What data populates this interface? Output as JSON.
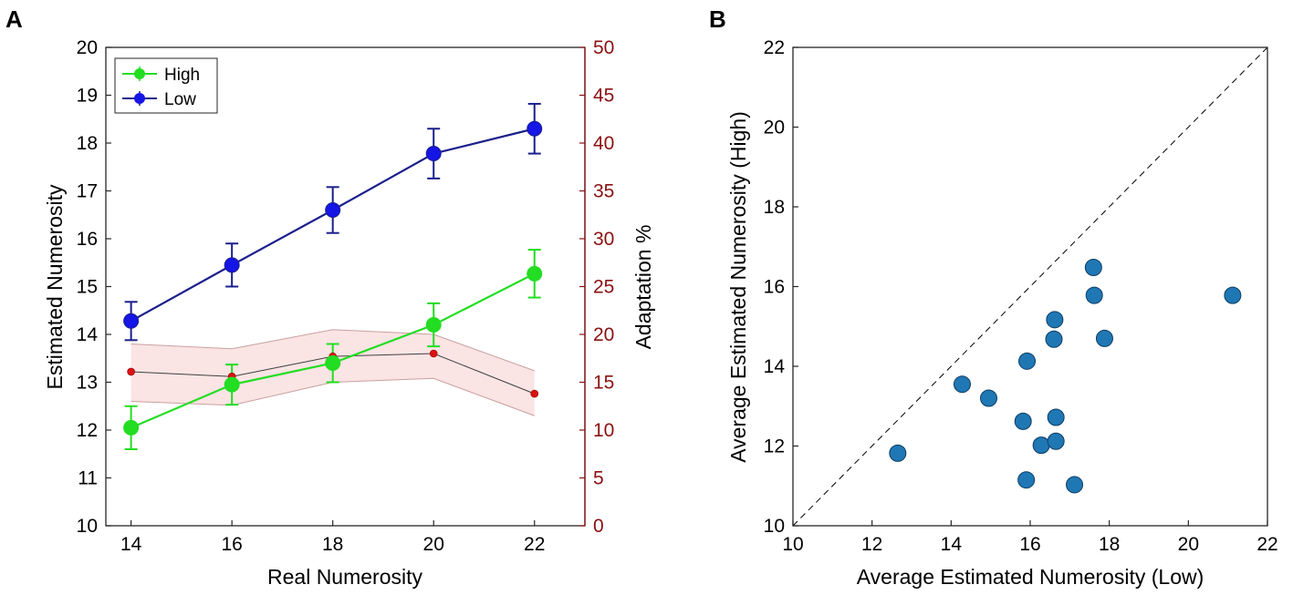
{
  "colors": {
    "high": "#22dd22",
    "low": "#1a1f8c",
    "low_marker": "#1515e6",
    "adapt_line": "#404040",
    "adapt_marker": "#dd1111",
    "adapt_band": "#fbe4e4",
    "adapt_axis": "#8b1010",
    "scatter": "#1f77b4"
  },
  "chart_data": [
    {
      "type": "line",
      "panel_label": "A",
      "xlabel": "Real Numerosity",
      "ylabel": "Estimated Numerosity",
      "y2label": "Adaptation %",
      "x": [
        14,
        16,
        18,
        20,
        22
      ],
      "xticks": [
        "14",
        "16",
        "18",
        "20",
        "22"
      ],
      "yticks": [
        "10",
        "11",
        "12",
        "13",
        "14",
        "15",
        "16",
        "17",
        "18",
        "19",
        "20"
      ],
      "y2ticks": [
        "0",
        "5",
        "10",
        "15",
        "20",
        "25",
        "30",
        "35",
        "40",
        "45",
        "50"
      ],
      "xlim": [
        13.5,
        23.0
      ],
      "ylim": [
        10,
        20
      ],
      "y2lim": [
        0,
        50
      ],
      "series": [
        {
          "name": "High",
          "values": [
            12.05,
            12.95,
            13.4,
            14.2,
            15.27
          ],
          "err": [
            0.45,
            0.42,
            0.4,
            0.45,
            0.5
          ]
        },
        {
          "name": "Low",
          "values": [
            14.28,
            15.45,
            16.6,
            17.78,
            18.3
          ],
          "err": [
            0.4,
            0.45,
            0.48,
            0.52,
            0.52
          ]
        }
      ],
      "adaptation": {
        "name": "Adaptation %",
        "values": [
          16.1,
          15.6,
          17.7,
          18.0,
          13.8
        ],
        "band_upper": [
          19.0,
          18.5,
          20.5,
          20.0,
          16.2
        ],
        "band_lower": [
          13.0,
          12.6,
          15.0,
          15.4,
          11.5
        ]
      },
      "legend": {
        "position": "top-left",
        "entries": [
          "High",
          "Low"
        ]
      }
    },
    {
      "type": "scatter",
      "panel_label": "B",
      "xlabel": "Average Estimated Numerosity (Low)",
      "ylabel": "Average Estimated Numerosity (High)",
      "xlim": [
        10,
        22
      ],
      "ylim": [
        10,
        22
      ],
      "xticks": [
        "10",
        "12",
        "14",
        "16",
        "18",
        "20",
        "22"
      ],
      "yticks": [
        "10",
        "12",
        "14",
        "16",
        "18",
        "20",
        "22"
      ],
      "points": [
        [
          12.65,
          11.82
        ],
        [
          14.28,
          13.55
        ],
        [
          14.95,
          13.2
        ],
        [
          15.82,
          12.62
        ],
        [
          15.9,
          11.15
        ],
        [
          15.92,
          14.13
        ],
        [
          16.28,
          12.02
        ],
        [
          16.6,
          14.68
        ],
        [
          16.62,
          15.17
        ],
        [
          16.65,
          12.72
        ],
        [
          16.65,
          12.12
        ],
        [
          17.12,
          11.03
        ],
        [
          17.6,
          16.48
        ],
        [
          17.62,
          15.78
        ],
        [
          17.88,
          14.7
        ],
        [
          21.12,
          15.78
        ]
      ],
      "reference_line": "y = x (dashed)"
    }
  ]
}
